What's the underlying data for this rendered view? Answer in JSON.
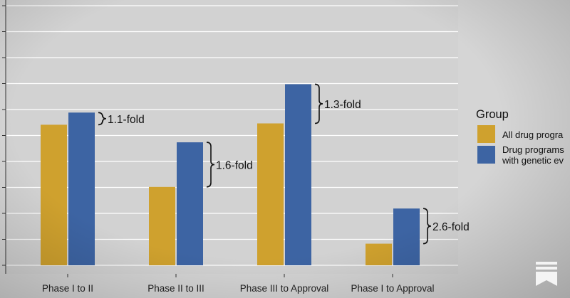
{
  "chart_data": {
    "type": "bar",
    "categories": [
      "Phase I to II",
      "Phase II to III",
      "Phase III to Approval",
      "Phase I to Approval"
    ],
    "series": [
      {
        "name": "All drug programs",
        "color": "#cfa12e",
        "values": [
          0.52,
          0.29,
          0.525,
          0.08
        ]
      },
      {
        "name": "Drug programs with genetic evidence",
        "color": "#3d64a3",
        "values": [
          0.565,
          0.455,
          0.67,
          0.21
        ]
      }
    ],
    "annotations": [
      "1.1-fold",
      "1.6-fold",
      "1.3-fold",
      "2.6-fold"
    ],
    "legend": {
      "title": "Group",
      "labels": [
        "All drug progra",
        "Drug programs",
        "with genetic ev"
      ],
      "position": "right"
    },
    "ylim": [
      0,
      1
    ],
    "grid": true,
    "title": "",
    "xlabel": "",
    "ylabel": ""
  },
  "colors": {
    "background": "#d5d5d5",
    "grid": "#ffffff",
    "text": "#111111"
  },
  "logo_icon": "substack-bookmark-icon"
}
